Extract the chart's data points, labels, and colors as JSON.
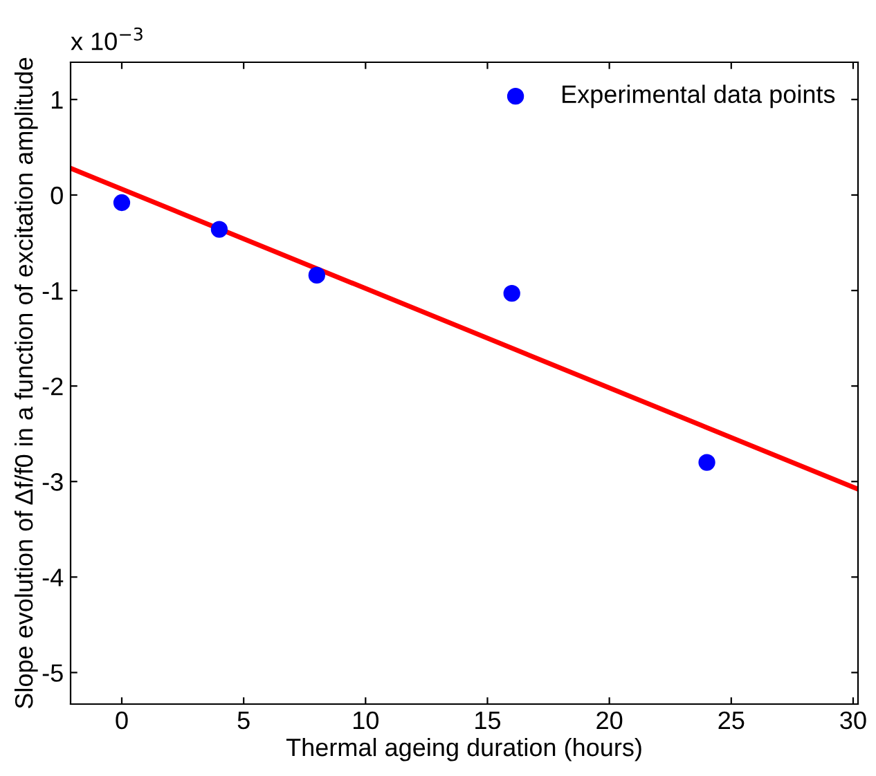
{
  "chart_data": {
    "type": "scatter",
    "xlabel": "Thermal ageing duration (hours)",
    "ylabel": "Slope evolution of Δf/f0 in a function of excitation amplitude",
    "annotations": [
      "x 10$^{−3}$"
    ],
    "series": [
      {
        "name": "Experimental data points",
        "color": "#0000ff",
        "marker": "circle",
        "x": [
          0,
          4,
          8,
          16,
          24
        ],
        "values": [
          -0.08,
          -0.36,
          -0.84,
          -1.03,
          -2.8
        ]
      },
      {
        "type": "line",
        "color": "#ff0000",
        "marker": "none",
        "line_style": "solid",
        "x": [
          -2.1,
          30.2
        ],
        "values": [
          0.28,
          -3.08
        ]
      }
    ],
    "xlim": [
      -2.1,
      30.2
    ],
    "xticks": [
      0,
      5,
      10,
      15,
      20,
      25,
      30
    ],
    "ylim": [
      -5.33,
      1.39
    ],
    "yticks": [
      -5,
      -4,
      -3,
      -2,
      -1,
      0,
      1
    ],
    "grid": false,
    "legend": "top right"
  }
}
